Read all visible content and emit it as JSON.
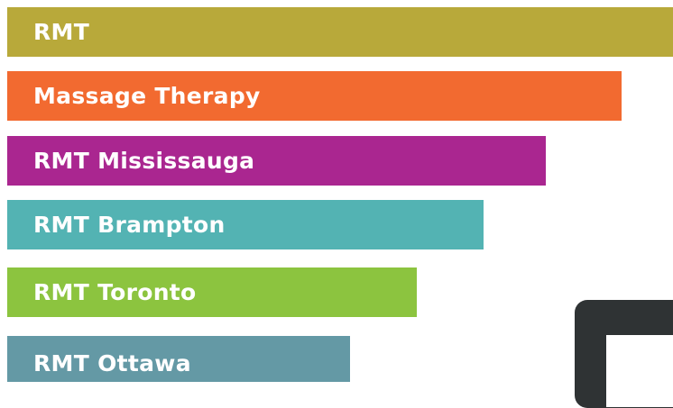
{
  "items": [
    {
      "label": "RMT"
    },
    {
      "label": "Massage Therapy"
    },
    {
      "label": "RMT Mississauga"
    },
    {
      "label": "RMT Brampton"
    },
    {
      "label": "RMT Toronto"
    },
    {
      "label": "RMT Ottawa"
    }
  ]
}
